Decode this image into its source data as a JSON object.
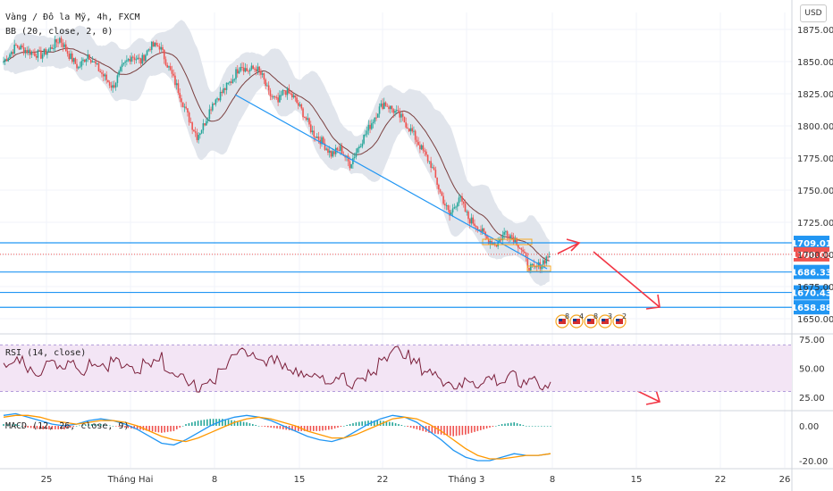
{
  "header": {
    "symbol_line": "Vàng / Đô la Mỹ, 4h, FXCM",
    "bb_legend": "BB (20, close, 2, 0)",
    "currency_button": "USD"
  },
  "rsi_legend": "RSI (14, close)",
  "macd_legend": "MACD (12, 26, close, 9)",
  "colors": {
    "up": "#26a69a",
    "down": "#ef5350",
    "bb_fill": "#e1e5ec",
    "bb_basis": "#7b3f3f",
    "trendline": "#2196f3",
    "level_line": "#2196f3",
    "current_price": "#ef5350",
    "rsi_line": "#7b1f3a",
    "rsi_band": "#f3e5f5",
    "macd_line": "#2196f3",
    "signal_line": "#ff9800",
    "arrow": "#f23645",
    "grid": "#f0f3fa"
  },
  "icons": [
    "flag-icon-us",
    "flag-icon-us",
    "flag-icon-us",
    "flag-icon-us",
    "flag-icon-us"
  ],
  "event_badges": [
    "8",
    "4",
    "8",
    "3",
    "2"
  ],
  "chart_data": [
    {
      "type": "candlestick",
      "title": "Vàng / Đô la Mỹ, 4h, FXCM",
      "y_ticks": [
        "1875.00",
        "1850.00",
        "1825.00",
        "1800.00",
        "1775.00",
        "1750.00",
        "1725.00",
        "1700.00",
        "1675.00",
        "1650.00"
      ],
      "ylim": [
        1640,
        1885
      ],
      "x_ticks": [
        "25",
        "Tháng Hai",
        "8",
        "15",
        "22",
        "Tháng 3",
        "8",
        "15",
        "22",
        "26"
      ],
      "current_price": "1700.06",
      "levels": [
        {
          "label": "1709.01",
          "value": 1709.01
        },
        {
          "label": "1686.33",
          "value": 1686.33
        },
        {
          "label": "1670.43",
          "value": 1670.43
        },
        {
          "label": "1658.88",
          "value": 1658.88
        }
      ],
      "indicators": [
        "BB (20, close, 2, 0)"
      ],
      "price_path": [
        [
          0,
          1850
        ],
        [
          8,
          1862
        ],
        [
          16,
          1858
        ],
        [
          24,
          1855
        ],
        [
          30,
          1860
        ],
        [
          36,
          1868
        ],
        [
          42,
          1855
        ],
        [
          48,
          1845
        ],
        [
          54,
          1856
        ],
        [
          62,
          1842
        ],
        [
          70,
          1830
        ],
        [
          76,
          1845
        ],
        [
          82,
          1855
        ],
        [
          88,
          1850
        ],
        [
          94,
          1862
        ],
        [
          100,
          1862
        ],
        [
          106,
          1845
        ],
        [
          112,
          1828
        ],
        [
          118,
          1808
        ],
        [
          124,
          1792
        ],
        [
          128,
          1800
        ],
        [
          134,
          1818
        ],
        [
          140,
          1826
        ],
        [
          146,
          1835
        ],
        [
          152,
          1848
        ],
        [
          156,
          1843
        ],
        [
          162,
          1845
        ],
        [
          166,
          1838
        ],
        [
          170,
          1825
        ],
        [
          176,
          1818
        ],
        [
          180,
          1828
        ],
        [
          186,
          1822
        ],
        [
          192,
          1810
        ],
        [
          198,
          1795
        ],
        [
          204,
          1788
        ],
        [
          210,
          1778
        ],
        [
          216,
          1782
        ],
        [
          222,
          1770
        ],
        [
          228,
          1785
        ],
        [
          234,
          1798
        ],
        [
          240,
          1812
        ],
        [
          244,
          1818
        ],
        [
          250,
          1812
        ],
        [
          256,
          1805
        ],
        [
          262,
          1795
        ],
        [
          268,
          1782
        ],
        [
          274,
          1770
        ],
        [
          280,
          1748
        ],
        [
          286,
          1730
        ],
        [
          292,
          1745
        ],
        [
          298,
          1728
        ],
        [
          304,
          1722
        ],
        [
          310,
          1712
        ],
        [
          316,
          1708
        ],
        [
          322,
          1718
        ],
        [
          328,
          1712
        ],
        [
          332,
          1704
        ],
        [
          336,
          1692
        ],
        [
          340,
          1688
        ],
        [
          344,
          1692
        ],
        [
          350,
          1700
        ]
      ]
    },
    {
      "type": "line",
      "title": "RSI (14, close)",
      "y_ticks": [
        "75.00",
        "50.00",
        "25.00"
      ],
      "ylim": [
        15,
        78
      ],
      "band": [
        30,
        70
      ],
      "values": [
        52,
        58,
        50,
        46,
        55,
        49,
        53,
        47,
        55,
        51,
        57,
        53,
        48,
        55,
        60,
        48,
        44,
        38,
        33,
        40,
        52,
        58,
        64,
        61,
        55,
        58,
        52,
        47,
        45,
        42,
        38,
        44,
        36,
        40,
        45,
        60,
        66,
        62,
        55,
        48,
        44,
        38,
        34,
        40,
        36,
        42,
        38,
        44,
        36,
        42,
        34,
        38
      ]
    },
    {
      "type": "bar",
      "title": "MACD (12, 26, close, 9)",
      "y_ticks": [
        "0.00",
        "-20.00"
      ],
      "ylim": [
        -25,
        10
      ],
      "macd": [
        6,
        7,
        5,
        3,
        1,
        0,
        1,
        3,
        4,
        3,
        1,
        -2,
        -6,
        -10,
        -11,
        -8,
        -4,
        0,
        3,
        5,
        6,
        5,
        3,
        0,
        -3,
        -6,
        -8,
        -9,
        -7,
        -3,
        1,
        4,
        6,
        5,
        2,
        -3,
        -8,
        -14,
        -18,
        -20,
        -20,
        -18,
        -16,
        -17,
        -17,
        -16
      ],
      "signal": [
        5,
        6,
        6,
        5,
        3,
        2,
        1,
        2,
        3,
        3,
        2,
        0,
        -3,
        -6,
        -8,
        -9,
        -7,
        -4,
        -1,
        2,
        4,
        5,
        4,
        2,
        0,
        -3,
        -5,
        -7,
        -7,
        -5,
        -2,
        1,
        4,
        5,
        4,
        1,
        -3,
        -8,
        -13,
        -17,
        -19,
        -19,
        -18,
        -17,
        -17,
        -16
      ]
    }
  ]
}
